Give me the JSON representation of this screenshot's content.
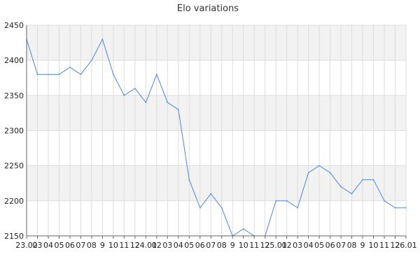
{
  "chart_data": {
    "type": "line",
    "title": "Elo variations",
    "xlabel": "",
    "ylabel": "",
    "ylim": [
      2150,
      2450
    ],
    "yticks": [
      2150,
      2200,
      2250,
      2300,
      2350,
      2400,
      2450
    ],
    "grid": true,
    "categories": [
      "23.02",
      "03",
      "04",
      "05",
      "06",
      "07",
      "08",
      "9",
      "10",
      "11",
      "12",
      "24.01",
      "02",
      "03",
      "04",
      "05",
      "06",
      "07",
      "08",
      "9",
      "10",
      "11",
      "12",
      "25.01",
      "02",
      "03",
      "04",
      "05",
      "06",
      "07",
      "08",
      "9",
      "10",
      "11",
      "12",
      "26.01"
    ],
    "values": [
      2430,
      2380,
      2380,
      2380,
      2390,
      2380,
      2400,
      2430,
      2380,
      2350,
      2360,
      2340,
      2380,
      2340,
      2330,
      2230,
      2190,
      2210,
      2190,
      2150,
      2160,
      2150,
      2150,
      2200,
      2200,
      2190,
      2240,
      2250,
      2240,
      2220,
      2210,
      2230,
      2230,
      2200,
      2190,
      2190
    ],
    "colors": {
      "line": "#4a86d8",
      "band": "#f2f2f2",
      "grid": "#dddddd",
      "axis": "#666666"
    }
  }
}
